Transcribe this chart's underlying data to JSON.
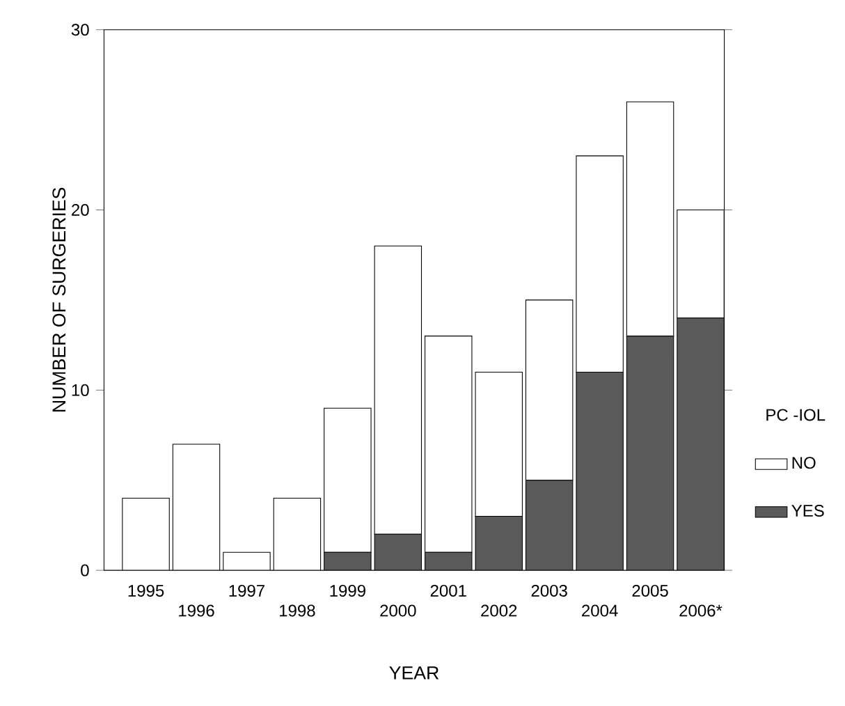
{
  "chart_data": {
    "type": "bar",
    "stacked": true,
    "xlabel": "YEAR",
    "ylabel": "NUMBER OF SURGERIES",
    "legend_title": "PC -IOL",
    "legend": "right",
    "categories": [
      "1995",
      "1996",
      "1997",
      "1998",
      "1999",
      "2000",
      "2001",
      "2002",
      "2003",
      "2004",
      "2005",
      "2006*"
    ],
    "series": [
      {
        "name": "YES",
        "color": "#5a5a5a",
        "values": [
          0,
          0,
          0,
          0,
          1,
          2,
          1,
          3,
          5,
          11,
          13,
          14
        ]
      },
      {
        "name": "NO",
        "color": "#ffffff",
        "values": [
          4,
          7,
          1,
          4,
          8,
          16,
          12,
          8,
          10,
          12,
          13,
          6
        ]
      }
    ],
    "ylim": [
      0,
      30
    ],
    "yticks": [
      0,
      10,
      20,
      30
    ],
    "grid": false
  }
}
